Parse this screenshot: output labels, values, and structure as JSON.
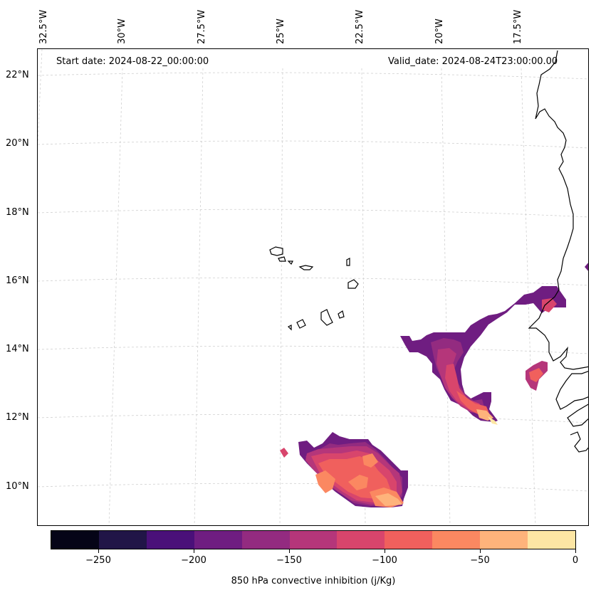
{
  "header": {
    "start_date": "Start date: 2024-08-22_00:00:00",
    "valid_date": "Valid_date: 2024-08-24T23:00:00.00"
  },
  "axes": {
    "lon_labels": [
      "32.5°W",
      "30°W",
      "27.5°W",
      "25°W",
      "22.5°W",
      "20°W",
      "17.5°W"
    ],
    "lat_labels": [
      "22°N",
      "20°N",
      "18°N",
      "16°N",
      "14°N",
      "12°N",
      "10°N"
    ]
  },
  "colorbar": {
    "title": "850 hPa convective inhibition (j/Kg)",
    "tick_labels": [
      "−250",
      "−200",
      "−150",
      "−100",
      "−50",
      "0"
    ],
    "colors": [
      "#050417",
      "#211547",
      "#4a1079",
      "#6f1d81",
      "#932b80",
      "#b5367a",
      "#d8456c",
      "#f0605d",
      "#fb8861",
      "#feb37b",
      "#fde6a4"
    ]
  },
  "map": {
    "field_colors": {
      "dark_purple": "#6f1d81",
      "magenta": "#932b80",
      "pink": "#b5367a",
      "rose": "#d8456c",
      "salmon": "#f0605d",
      "orange": "#fb8861",
      "light_orange": "#feb37b",
      "pale": "#fde6a4"
    },
    "coast_color": "#000000",
    "grid_color": "#d0d0d0"
  }
}
